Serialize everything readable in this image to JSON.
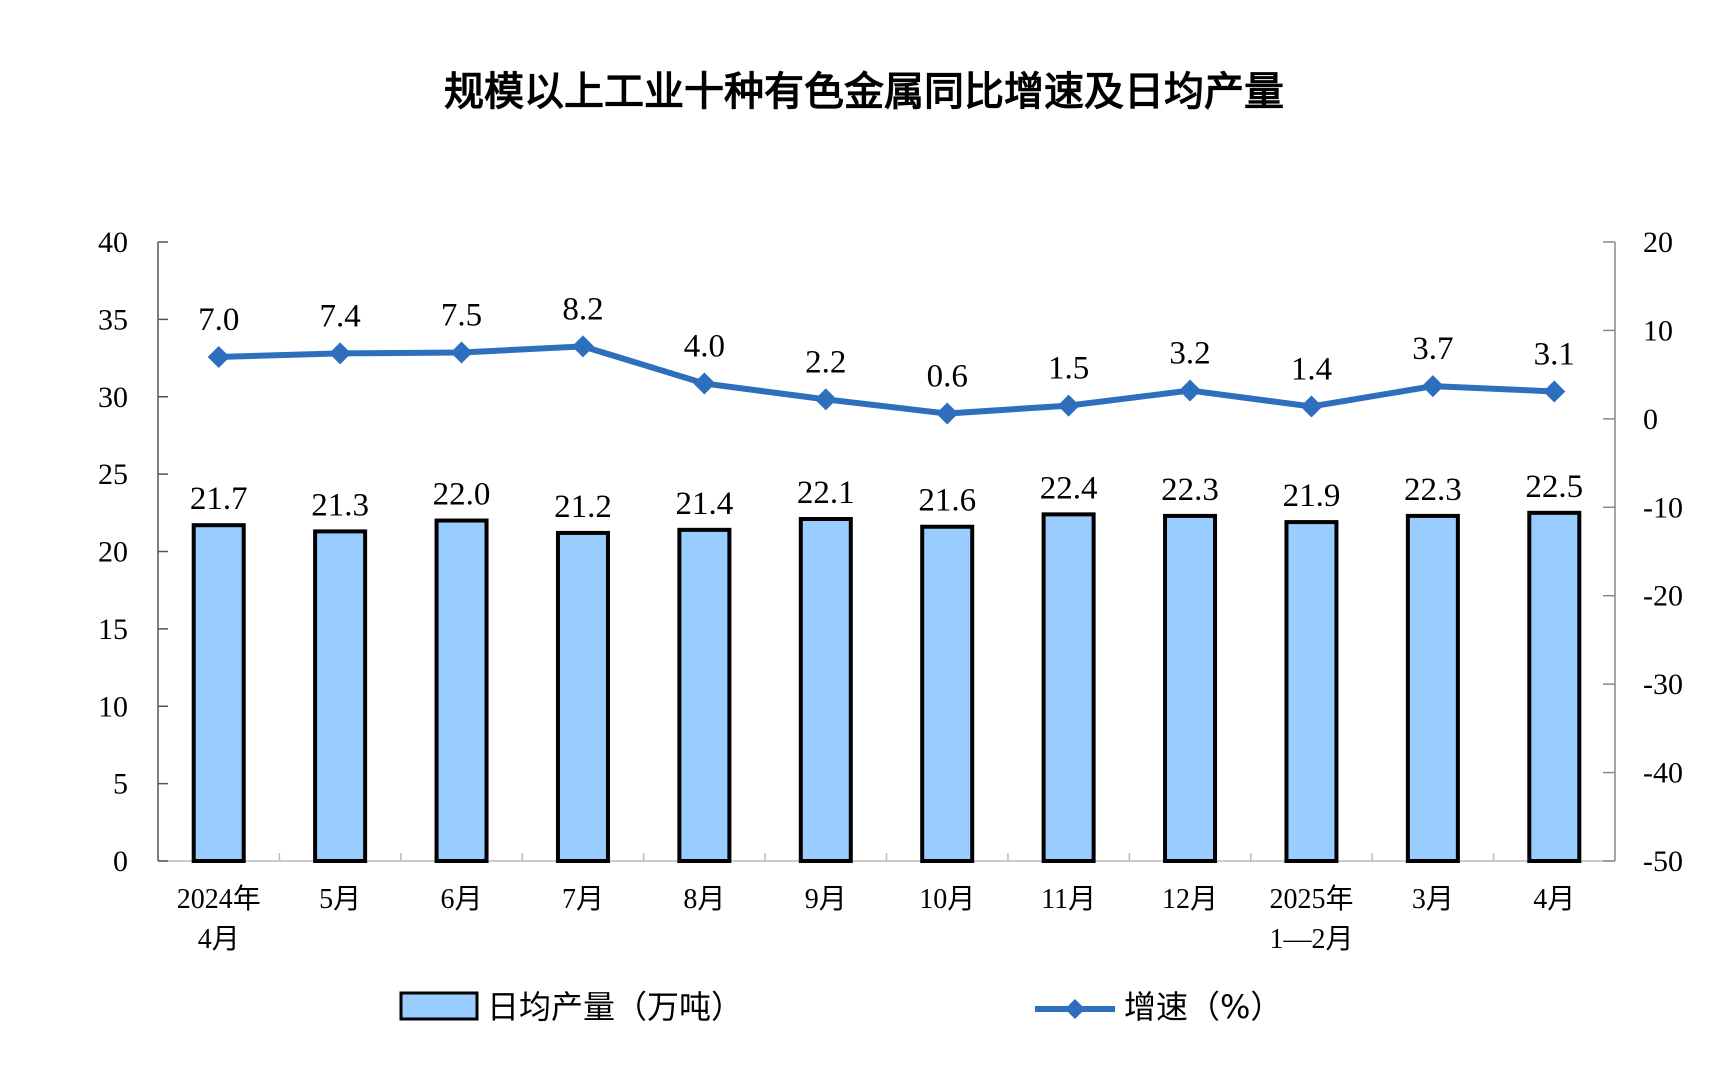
{
  "chart_data": {
    "type": "bar+line",
    "title": "规模以上工业十种有色金属同比增速及日均产量",
    "categories": [
      [
        "2024年",
        "4月"
      ],
      [
        "5月"
      ],
      [
        "6月"
      ],
      [
        "7月"
      ],
      [
        "8月"
      ],
      [
        "9月"
      ],
      [
        "10月"
      ],
      [
        "11月"
      ],
      [
        "12月"
      ],
      [
        "2025年",
        "1—2月"
      ],
      [
        "3月"
      ],
      [
        "4月"
      ]
    ],
    "series": [
      {
        "name": "日均产量（万吨）",
        "type": "bar",
        "axis": "left",
        "values": [
          21.7,
          21.3,
          22.0,
          21.2,
          21.4,
          22.1,
          21.6,
          22.4,
          22.3,
          21.9,
          22.3,
          22.5
        ],
        "labels": [
          "21.7",
          "21.3",
          "22.0",
          "21.2",
          "21.4",
          "22.1",
          "21.6",
          "22.4",
          "22.3",
          "21.9",
          "22.3",
          "22.5"
        ]
      },
      {
        "name": "增速（%）",
        "type": "line",
        "axis": "right",
        "values": [
          7.0,
          7.4,
          7.5,
          8.2,
          4.0,
          2.2,
          0.6,
          1.5,
          3.2,
          1.4,
          3.7,
          3.1
        ],
        "labels": [
          "7.0",
          "7.4",
          "7.5",
          "8.2",
          "4.0",
          "2.2",
          "0.6",
          "1.5",
          "3.2",
          "1.4",
          "3.7",
          "3.1"
        ]
      }
    ],
    "left_axis": {
      "range": [
        0,
        40
      ],
      "ticks": [
        "0",
        "5",
        "10",
        "15",
        "20",
        "25",
        "30",
        "35",
        "40"
      ]
    },
    "right_axis": {
      "range": [
        -50,
        20
      ],
      "ticks": [
        "-50",
        "-40",
        "-30",
        "-20",
        "-10",
        "0",
        "10",
        "20"
      ]
    },
    "legend": {
      "placement": "bottom",
      "items": [
        "日均产量（万吨）",
        "增速（%）"
      ]
    },
    "colors": {
      "bar": "#99ccff",
      "bar_border": "#000000",
      "line": "#2e6fbd"
    }
  }
}
